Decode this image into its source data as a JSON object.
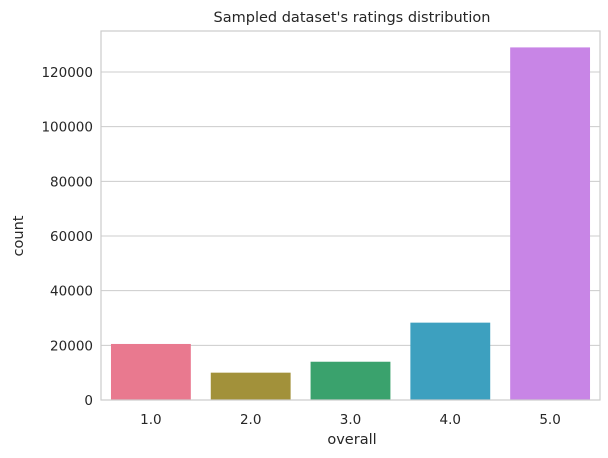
{
  "chart_data": {
    "type": "bar",
    "title": "Sampled dataset's ratings distribution",
    "xlabel": "overall",
    "ylabel": "count",
    "categories": [
      "1.0",
      "2.0",
      "3.0",
      "4.0",
      "5.0"
    ],
    "values": [
      20500,
      10000,
      14000,
      28300,
      129000
    ],
    "colors": [
      "#e9798f",
      "#a2913a",
      "#3aa26d",
      "#3da0bf",
      "#c885e6"
    ],
    "ylim": [
      0,
      135000
    ],
    "yticks": [
      0,
      20000,
      40000,
      60000,
      80000,
      100000,
      120000
    ],
    "ytick_labels": [
      "0",
      "20000",
      "40000",
      "60000",
      "80000",
      "100000",
      "120000"
    ],
    "grid": true
  }
}
